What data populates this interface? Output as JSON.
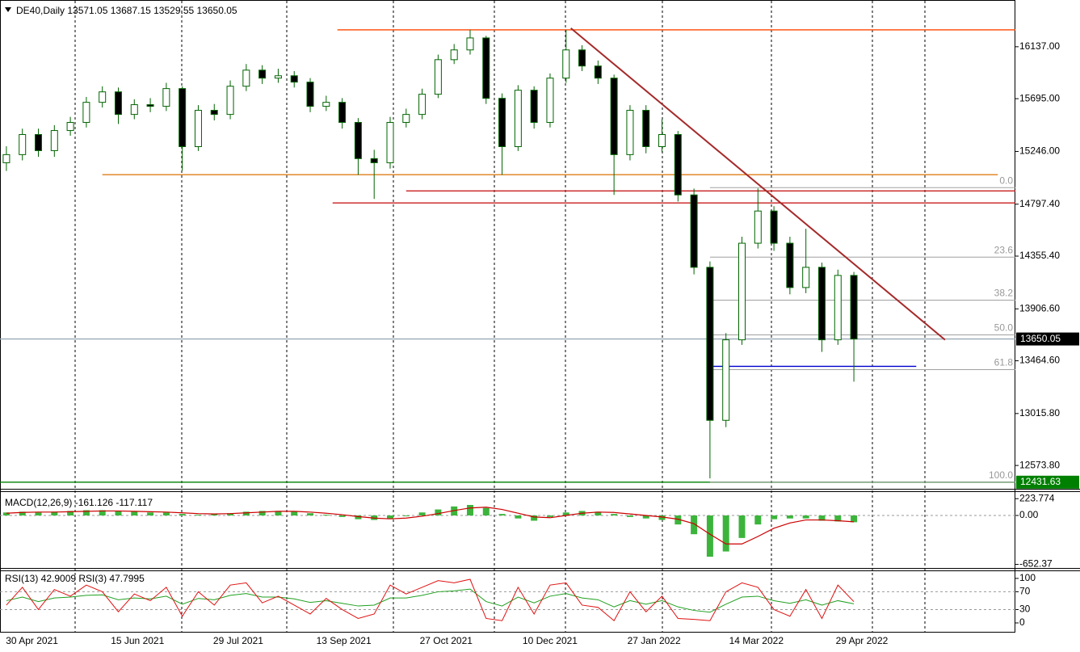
{
  "chart_data": [
    {
      "type": "candlestick",
      "title": "DE40,Daily  13571.05 13687.15 13529.55 13650.05",
      "xlim": [
        -0.4,
        63.1
      ],
      "xticks": [
        {
          "value": 1.6,
          "label": "30 Apr 2021"
        },
        {
          "value": 8.2,
          "label": "15 Jun 2021"
        },
        {
          "value": 14.5,
          "label": "29 Jul 2021"
        },
        {
          "value": 21.1,
          "label": "13 Sep 2021"
        },
        {
          "value": 27.5,
          "label": "27 Oct 2021"
        },
        {
          "value": 34.0,
          "label": "10 Dec 2021"
        },
        {
          "value": 40.5,
          "label": "27 Jan 2022"
        },
        {
          "value": 46.9,
          "label": "14 Mar 2022"
        },
        {
          "value": 53.5,
          "label": "29 Apr 2022"
        }
      ],
      "ylim": [
        12389,
        16521
      ],
      "yticks": [
        {
          "value": 16137,
          "label": "16137.00"
        },
        {
          "value": 15695,
          "label": "15695.00"
        },
        {
          "value": 15246,
          "label": "15246.00"
        },
        {
          "value": 14797.4,
          "label": "14797.40"
        },
        {
          "value": 14355.4,
          "label": "14355.40"
        },
        {
          "value": 13906.6,
          "label": "13906.60"
        },
        {
          "value": 13464.6,
          "label": "13464.60"
        },
        {
          "value": 13015.8,
          "label": "13015.80"
        },
        {
          "value": 12573.8,
          "label": "12573.80"
        }
      ],
      "wick_color": "#006400",
      "up_color": "#ffffff",
      "down_color": "#000000",
      "open": [
        15150,
        15219,
        15390,
        15253,
        15424,
        15493,
        15664,
        15753,
        15561,
        15644,
        15630,
        15781,
        15287,
        15596,
        15561,
        15801,
        15938,
        15870,
        15890,
        15836,
        15630,
        15664,
        15493,
        15185,
        15150,
        15493,
        15561,
        15733,
        16027,
        16110,
        16212,
        15698,
        15287,
        15767,
        15493,
        15870,
        16110,
        15973,
        15870,
        15219,
        15596,
        15287,
        15390,
        14876,
        14260,
        12958,
        13643,
        14465,
        14739,
        14465,
        14088,
        14260,
        13643,
        14191
      ],
      "high": [
        15290,
        15440,
        15440,
        15470,
        15540,
        15710,
        15800,
        15790,
        15690,
        15700,
        15830,
        15800,
        15640,
        15650,
        15850,
        15990,
        15980,
        15950,
        15930,
        15870,
        15720,
        15700,
        15530,
        15260,
        15540,
        15610,
        15780,
        16070,
        16160,
        16281,
        16230,
        15740,
        15810,
        15800,
        15910,
        16281,
        16150,
        16020,
        15900,
        15640,
        15640,
        15520,
        15420,
        14930,
        14310,
        13700,
        14520,
        14931,
        14780,
        14520,
        14588,
        14300,
        14240,
        14220
      ],
      "low": [
        15080,
        15170,
        15200,
        15200,
        15380,
        15450,
        15620,
        15480,
        15520,
        15580,
        15590,
        15082,
        15250,
        15510,
        15520,
        15760,
        15820,
        15830,
        15790,
        15580,
        15590,
        15440,
        15048,
        14842,
        15100,
        15450,
        15520,
        15700,
        15990,
        16070,
        15650,
        15048,
        15250,
        15440,
        15450,
        15830,
        15930,
        15820,
        14876,
        15170,
        15230,
        15240,
        14820,
        14200,
        12464,
        12900,
        13600,
        14420,
        14400,
        14030,
        14040,
        13540,
        13600,
        13287
      ],
      "close": [
        15219,
        15390,
        15253,
        15424,
        15493,
        15664,
        15753,
        15561,
        15644,
        15630,
        15781,
        15287,
        15596,
        15561,
        15801,
        15938,
        15870,
        15890,
        15836,
        15630,
        15664,
        15493,
        15185,
        15150,
        15493,
        15561,
        15733,
        16027,
        16110,
        16212,
        15698,
        15287,
        15767,
        15493,
        15870,
        16110,
        15973,
        15870,
        15219,
        15596,
        15287,
        15390,
        14876,
        14260,
        12958,
        13643,
        14465,
        14739,
        14465,
        14088,
        14260,
        13643,
        14191,
        13650
      ],
      "lines": [
        {
          "price": 16281,
          "color": "#ff4500",
          "from": 20.7,
          "to": 63.1
        },
        {
          "price": 15048,
          "color": "#e08a2c",
          "from": 6.0,
          "to": 62.0
        },
        {
          "price": 14910,
          "color": "#c81e1e",
          "from": 25.0,
          "to": 63.1
        },
        {
          "price": 14808,
          "color": "#c81e1e",
          "from": 20.4,
          "to": 63.1
        },
        {
          "price": 13417,
          "color": "#0000cd",
          "from": 44.2,
          "to": 56.9
        },
        {
          "price": 13650.05,
          "color": "#9aa8b8",
          "from": -0.4,
          "to": 63.1
        },
        {
          "price": 12431.63,
          "color": "#008000",
          "from": -0.4,
          "to": 63.1
        }
      ],
      "trendline": {
        "color": "#a52a2a",
        "from": [
          35.3,
          16295
        ],
        "to": [
          58.7,
          13643
        ]
      },
      "fib": {
        "from": 44.0,
        "color": "#a0a0a0",
        "levels": [
          {
            "label": "0.0",
            "price": 14938
          },
          {
            "label": "23.6",
            "price": 14346.5
          },
          {
            "label": "38.2",
            "price": 13980.6
          },
          {
            "label": "50.0",
            "price": 13684.8
          },
          {
            "label": "61.8",
            "price": 13389.1
          },
          {
            "label": "100.0",
            "price": 12431.63
          }
        ]
      },
      "price_tags": [
        {
          "value": 13650.05,
          "color": "#000000"
        },
        {
          "value": 12431.63,
          "color": "#008000"
        }
      ]
    },
    {
      "type": "macd",
      "title": "MACD(12,26,9) -161.126 -117.117",
      "ylim": [
        -700,
        280
      ],
      "yticks": [
        223.774,
        {
          "value": 0,
          "label": "0.00"
        },
        -652.37
      ],
      "levels": [
        0
      ],
      "color": "#3cb43c",
      "line_color": "#cc0000",
      "values": [
        40,
        50,
        40,
        50,
        60,
        70,
        70,
        60,
        50,
        40,
        40,
        20,
        10,
        20,
        30,
        50,
        60,
        60,
        50,
        30,
        10,
        -20,
        -50,
        -60,
        -40,
        -10,
        40,
        80,
        120,
        140,
        100,
        20,
        -40,
        -70,
        -20,
        40,
        60,
        50,
        20,
        -20,
        -40,
        -60,
        -120,
        -250,
        -550,
        -480,
        -300,
        -120,
        -50,
        -40,
        -40,
        -70,
        -80,
        -90
      ],
      "signal": [
        30,
        40,
        45,
        45,
        50,
        55,
        60,
        60,
        55,
        50,
        45,
        35,
        25,
        20,
        25,
        35,
        45,
        55,
        55,
        45,
        30,
        10,
        -15,
        -35,
        -45,
        -35,
        -10,
        25,
        65,
        100,
        110,
        80,
        30,
        -20,
        -30,
        0,
        30,
        45,
        40,
        20,
        0,
        -20,
        -50,
        -110,
        -250,
        -380,
        -380,
        -280,
        -170,
        -100,
        -60,
        -60,
        -70,
        -85
      ]
    },
    {
      "type": "rsi",
      "title": "RSI(13) 42.9009  RSI(3) 47.7995",
      "ylim": [
        -20,
        118
      ],
      "yticks": [
        100,
        70,
        30,
        0
      ],
      "levels": [
        70,
        30
      ],
      "series": [
        {
          "color": "#20a020",
          "values": [
            50,
            58,
            48,
            56,
            58,
            62,
            63,
            52,
            56,
            54,
            60,
            42,
            55,
            52,
            62,
            66,
            58,
            58,
            54,
            46,
            50,
            44,
            38,
            40,
            56,
            56,
            62,
            70,
            72,
            76,
            48,
            38,
            58,
            45,
            60,
            66,
            56,
            52,
            36,
            50,
            42,
            50,
            36,
            28,
            24,
            42,
            58,
            60,
            50,
            44,
            52,
            40,
            50,
            42.9
          ]
        },
        {
          "color": "#e01010",
          "values": [
            40,
            80,
            30,
            75,
            60,
            85,
            70,
            25,
            65,
            50,
            80,
            15,
            70,
            40,
            85,
            90,
            45,
            60,
            40,
            20,
            55,
            30,
            10,
            20,
            85,
            65,
            80,
            95,
            90,
            98,
            10,
            5,
            80,
            20,
            85,
            90,
            40,
            35,
            5,
            70,
            25,
            60,
            10,
            8,
            5,
            70,
            90,
            80,
            30,
            15,
            75,
            10,
            85,
            47.8
          ]
        }
      ]
    }
  ]
}
